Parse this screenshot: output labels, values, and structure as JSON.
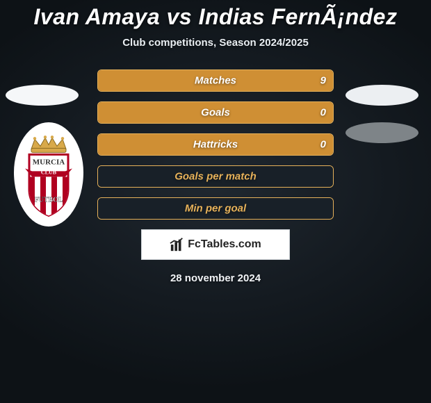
{
  "header": {
    "title": "Ivan Amaya vs Indias FernÃ¡ndez",
    "subtitle": "Club competitions, Season 2024/2025"
  },
  "crest": {
    "top_text": "MURCIA",
    "bottom_text": "FUTBOL",
    "banner_text": "CLUB",
    "crown_color": "#d8a94a",
    "shield_border": "#b00020",
    "shield_fill": "#ffffff",
    "banner_fill": "#b00020",
    "stripe_a": "#b00020",
    "stripe_b": "#ffffff"
  },
  "stats": [
    {
      "label": "Matches",
      "value": "9",
      "fill": "#cf8f34",
      "border": "#e7b25a"
    },
    {
      "label": "Goals",
      "value": "0",
      "fill": "#cf8f34",
      "border": "#e7b25a"
    },
    {
      "label": "Hattricks",
      "value": "0",
      "fill": "#cf8f34",
      "border": "#e7b25a"
    },
    {
      "label": "Goals per match",
      "value": "",
      "fill": "#182028",
      "border": "#e7b25a"
    },
    {
      "label": "Min per goal",
      "value": "",
      "fill": "#182028",
      "border": "#e7b25a"
    }
  ],
  "branding": {
    "name": "FcTables.com"
  },
  "date": "28 november 2024",
  "bar_label_color_on_dark": "#e7b25a"
}
